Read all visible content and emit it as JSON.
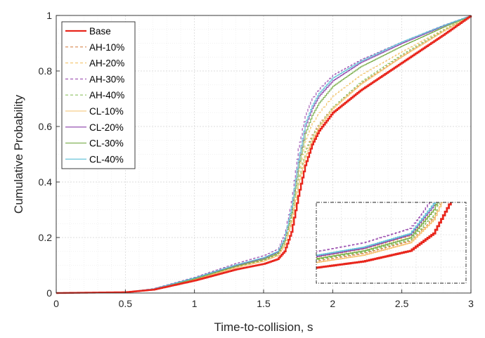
{
  "chart_data": {
    "type": "line",
    "title": "",
    "xlabel": "Time-to-collision, s",
    "ylabel": "Cumulative Probability",
    "xlim": [
      0,
      3
    ],
    "ylim": [
      0,
      1
    ],
    "xticks": [
      "0",
      "0.5",
      "1",
      "1.5",
      "2",
      "2.5",
      "3"
    ],
    "yticks": [
      "0",
      "0.2",
      "0.4",
      "0.6",
      "0.8",
      "1"
    ],
    "grid": true,
    "legend_position": "top-left",
    "x": [
      0,
      0.5,
      0.7,
      1.0,
      1.3,
      1.5,
      1.6,
      1.65,
      1.7,
      1.75,
      1.8,
      1.85,
      1.9,
      2.0,
      2.2,
      2.5,
      2.8,
      3.0
    ],
    "series": [
      {
        "name": "Base",
        "color": "#e8261c",
        "dash": "solid",
        "width": 2.4,
        "values": [
          0,
          0.003,
          0.012,
          0.045,
          0.085,
          0.105,
          0.122,
          0.15,
          0.22,
          0.35,
          0.46,
          0.535,
          0.585,
          0.65,
          0.73,
          0.83,
          0.93,
          1.0
        ]
      },
      {
        "name": "AH-10%",
        "color": "#d9864f",
        "dash": "4,3",
        "width": 1.1,
        "values": [
          0,
          0.003,
          0.014,
          0.05,
          0.094,
          0.118,
          0.138,
          0.175,
          0.26,
          0.4,
          0.51,
          0.57,
          0.61,
          0.67,
          0.755,
          0.855,
          0.945,
          1.0
        ]
      },
      {
        "name": "AH-20%",
        "color": "#f2c46b",
        "dash": "4,3",
        "width": 1.1,
        "values": [
          0,
          0.003,
          0.015,
          0.053,
          0.099,
          0.125,
          0.146,
          0.188,
          0.28,
          0.43,
          0.545,
          0.61,
          0.65,
          0.71,
          0.785,
          0.87,
          0.95,
          1.0
        ]
      },
      {
        "name": "AH-30%",
        "color": "#9b4fb0",
        "dash": "4,3",
        "width": 1.1,
        "values": [
          0,
          0.003,
          0.016,
          0.057,
          0.107,
          0.135,
          0.158,
          0.21,
          0.33,
          0.52,
          0.64,
          0.7,
          0.735,
          0.785,
          0.84,
          0.905,
          0.965,
          1.0
        ]
      },
      {
        "name": "AH-40%",
        "color": "#8fc462",
        "dash": "4,3",
        "width": 1.1,
        "values": [
          0,
          0.003,
          0.015,
          0.052,
          0.096,
          0.12,
          0.14,
          0.18,
          0.27,
          0.41,
          0.51,
          0.565,
          0.605,
          0.67,
          0.76,
          0.86,
          0.948,
          1.0
        ]
      },
      {
        "name": "CL-10%",
        "color": "#f5c16d",
        "dash": "solid",
        "width": 1.1,
        "values": [
          0,
          0.003,
          0.013,
          0.049,
          0.092,
          0.115,
          0.135,
          0.172,
          0.255,
          0.39,
          0.49,
          0.55,
          0.6,
          0.665,
          0.752,
          0.852,
          0.944,
          1.0
        ]
      },
      {
        "name": "CL-20%",
        "color": "#8a3fa8",
        "dash": "solid",
        "width": 1.1,
        "values": [
          0,
          0.003,
          0.015,
          0.054,
          0.1,
          0.126,
          0.148,
          0.195,
          0.3,
          0.47,
          0.6,
          0.665,
          0.71,
          0.765,
          0.83,
          0.9,
          0.962,
          1.0
        ]
      },
      {
        "name": "CL-30%",
        "color": "#77ac48",
        "dash": "solid",
        "width": 1.1,
        "values": [
          0,
          0.003,
          0.014,
          0.052,
          0.097,
          0.122,
          0.143,
          0.188,
          0.29,
          0.45,
          0.575,
          0.64,
          0.685,
          0.745,
          0.815,
          0.89,
          0.958,
          1.0
        ]
      },
      {
        "name": "CL-40%",
        "color": "#5cc0d6",
        "dash": "solid",
        "width": 1.1,
        "values": [
          0,
          0.003,
          0.015,
          0.055,
          0.102,
          0.128,
          0.15,
          0.198,
          0.31,
          0.48,
          0.61,
          0.675,
          0.72,
          0.775,
          0.835,
          0.905,
          0.964,
          1.0
        ]
      }
    ],
    "inset": {
      "description": "zoomed view",
      "xlim": [
        1.4,
        1.72
      ],
      "ylim": [
        0.07,
        0.2
      ]
    }
  }
}
